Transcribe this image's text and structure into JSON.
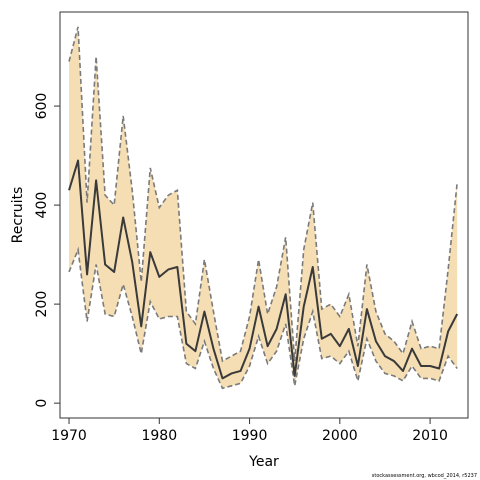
{
  "chart_data": {
    "type": "line",
    "xlabel": "Year",
    "ylabel": "Recruits",
    "xlim": [
      1969.0,
      2014.2
    ],
    "ylim": [
      -30,
      790
    ],
    "x_ticks": [
      1970,
      1980,
      1990,
      2000,
      2010
    ],
    "y_ticks": [
      0,
      200,
      400,
      600
    ],
    "grid": false,
    "colors": {
      "interval_fill": "#f5deb3",
      "interval_border": "#7a7a7a",
      "estimate_line": "#3a3a3a",
      "axes": "#333333"
    },
    "x": [
      1970,
      1971,
      1972,
      1973,
      1974,
      1975,
      1976,
      1977,
      1978,
      1979,
      1980,
      1981,
      1982,
      1983,
      1984,
      1985,
      1986,
      1987,
      1988,
      1989,
      1990,
      1991,
      1992,
      1993,
      1994,
      1995,
      1996,
      1997,
      1998,
      1999,
      2000,
      2001,
      2002,
      2003,
      2004,
      2005,
      2006,
      2007,
      2008,
      2009,
      2010,
      2011,
      2012,
      2013
    ],
    "series": [
      {
        "values": [
          430,
          490,
          260,
          450,
          280,
          265,
          375,
          285,
          155,
          305,
          255,
          270,
          275,
          120,
          105,
          185,
          110,
          50,
          60,
          65,
          110,
          195,
          115,
          150,
          220,
          55,
          195,
          275,
          130,
          140,
          115,
          150,
          75,
          190,
          125,
          95,
          85,
          65,
          110,
          75,
          75,
          70,
          145,
          180
        ],
        "lower": [
          265,
          310,
          165,
          280,
          180,
          175,
          240,
          175,
          100,
          205,
          170,
          175,
          175,
          80,
          70,
          125,
          70,
          30,
          35,
          40,
          75,
          135,
          80,
          105,
          160,
          35,
          130,
          185,
          90,
          95,
          80,
          105,
          45,
          130,
          85,
          60,
          55,
          45,
          75,
          50,
          50,
          45,
          95,
          70
        ],
        "upper": [
          690,
          760,
          405,
          700,
          420,
          400,
          580,
          430,
          245,
          475,
          395,
          420,
          430,
          185,
          160,
          290,
          185,
          85,
          95,
          105,
          175,
          290,
          180,
          235,
          335,
          85,
          310,
          405,
          190,
          200,
          175,
          220,
          115,
          280,
          185,
          140,
          125,
          100,
          165,
          110,
          115,
          110,
          270,
          445
        ]
      }
    ],
    "source_note": "stockassessment.org, wbcod_2014, r5237"
  }
}
